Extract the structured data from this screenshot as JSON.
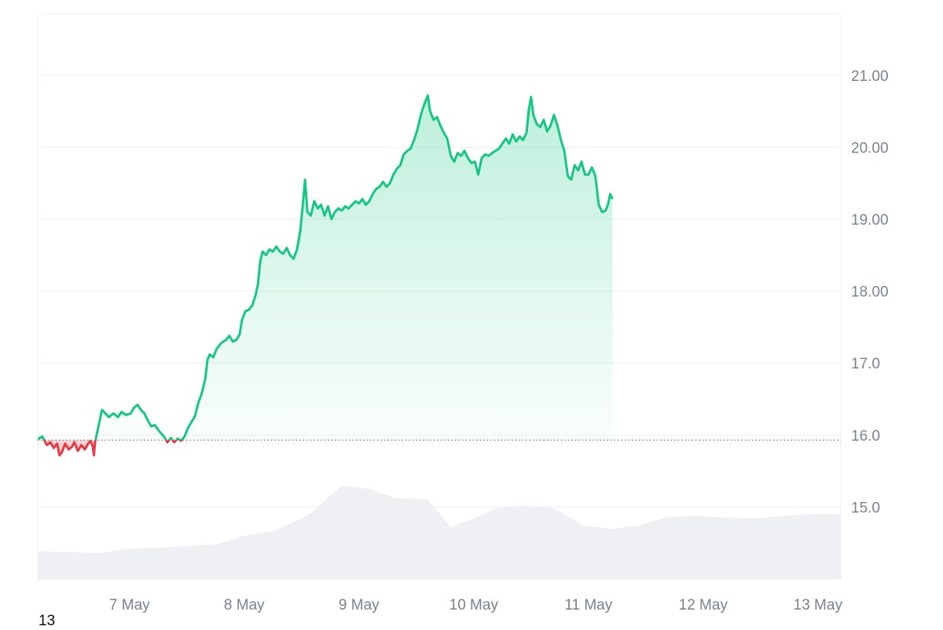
{
  "chart_data": {
    "type": "area",
    "baseline": 15.93,
    "ylim": [
      14.0,
      21.85
    ],
    "y_ticks": [
      {
        "value": 21.0,
        "label": "21.00"
      },
      {
        "value": 20.0,
        "label": "20.00"
      },
      {
        "value": 19.0,
        "label": "19.00"
      },
      {
        "value": 18.0,
        "label": "18.00"
      },
      {
        "value": 17.0,
        "label": "17.0"
      },
      {
        "value": 16.0,
        "label": "16.0"
      },
      {
        "value": 15.0,
        "label": "15.0"
      }
    ],
    "x_domain": [
      6.2,
      13.2
    ],
    "x_ticks": [
      {
        "value": 7,
        "label": "7 May"
      },
      {
        "value": 8,
        "label": "8 May"
      },
      {
        "value": 9,
        "label": "9 May"
      },
      {
        "value": 10,
        "label": "10 May"
      },
      {
        "value": 11,
        "label": "11 May"
      },
      {
        "value": 12,
        "label": "12 May"
      },
      {
        "value": 13,
        "label": "13 May"
      }
    ],
    "price": [
      [
        6.2,
        15.94
      ],
      [
        6.24,
        15.98
      ],
      [
        6.28,
        15.86
      ],
      [
        6.31,
        15.9
      ],
      [
        6.34,
        15.82
      ],
      [
        6.37,
        15.88
      ],
      [
        6.39,
        15.72
      ],
      [
        6.41,
        15.76
      ],
      [
        6.44,
        15.88
      ],
      [
        6.47,
        15.8
      ],
      [
        6.5,
        15.84
      ],
      [
        6.52,
        15.9
      ],
      [
        6.55,
        15.78
      ],
      [
        6.58,
        15.86
      ],
      [
        6.61,
        15.8
      ],
      [
        6.64,
        15.88
      ],
      [
        6.66,
        15.92
      ],
      [
        6.68,
        15.84
      ],
      [
        6.69,
        15.72
      ],
      [
        6.7,
        15.9
      ],
      [
        6.72,
        16.05
      ],
      [
        6.74,
        16.2
      ],
      [
        6.76,
        16.35
      ],
      [
        6.79,
        16.3
      ],
      [
        6.82,
        16.25
      ],
      [
        6.86,
        16.3
      ],
      [
        6.9,
        16.25
      ],
      [
        6.93,
        16.32
      ],
      [
        6.97,
        16.28
      ],
      [
        7.01,
        16.3
      ],
      [
        7.04,
        16.38
      ],
      [
        7.07,
        16.42
      ],
      [
        7.1,
        16.35
      ],
      [
        7.13,
        16.3
      ],
      [
        7.16,
        16.2
      ],
      [
        7.19,
        16.12
      ],
      [
        7.22,
        16.14
      ],
      [
        7.26,
        16.05
      ],
      [
        7.3,
        15.98
      ],
      [
        7.33,
        15.9
      ],
      [
        7.36,
        15.96
      ],
      [
        7.39,
        15.9
      ],
      [
        7.42,
        15.95
      ],
      [
        7.45,
        15.92
      ],
      [
        7.48,
        15.98
      ],
      [
        7.51,
        16.1
      ],
      [
        7.54,
        16.18
      ],
      [
        7.57,
        16.26
      ],
      [
        7.6,
        16.45
      ],
      [
        7.63,
        16.58
      ],
      [
        7.66,
        16.78
      ],
      [
        7.68,
        17.05
      ],
      [
        7.7,
        17.12
      ],
      [
        7.73,
        17.08
      ],
      [
        7.76,
        17.2
      ],
      [
        7.8,
        17.28
      ],
      [
        7.84,
        17.32
      ],
      [
        7.87,
        17.38
      ],
      [
        7.9,
        17.3
      ],
      [
        7.93,
        17.32
      ],
      [
        7.96,
        17.4
      ],
      [
        7.98,
        17.6
      ],
      [
        8.01,
        17.72
      ],
      [
        8.04,
        17.74
      ],
      [
        8.07,
        17.8
      ],
      [
        8.1,
        17.95
      ],
      [
        8.12,
        18.1
      ],
      [
        8.14,
        18.42
      ],
      [
        8.16,
        18.55
      ],
      [
        8.19,
        18.5
      ],
      [
        8.22,
        18.58
      ],
      [
        8.25,
        18.55
      ],
      [
        8.28,
        18.62
      ],
      [
        8.31,
        18.55
      ],
      [
        8.34,
        18.52
      ],
      [
        8.37,
        18.6
      ],
      [
        8.4,
        18.5
      ],
      [
        8.43,
        18.45
      ],
      [
        8.46,
        18.58
      ],
      [
        8.49,
        18.85
      ],
      [
        8.51,
        19.2
      ],
      [
        8.53,
        19.55
      ],
      [
        8.55,
        19.1
      ],
      [
        8.58,
        19.05
      ],
      [
        8.61,
        19.25
      ],
      [
        8.64,
        19.15
      ],
      [
        8.67,
        19.2
      ],
      [
        8.7,
        19.05
      ],
      [
        8.73,
        19.18
      ],
      [
        8.76,
        19.0
      ],
      [
        8.79,
        19.1
      ],
      [
        8.82,
        19.15
      ],
      [
        8.85,
        19.12
      ],
      [
        8.88,
        19.18
      ],
      [
        8.91,
        19.15
      ],
      [
        8.94,
        19.2
      ],
      [
        8.97,
        19.25
      ],
      [
        9.0,
        19.22
      ],
      [
        9.03,
        19.28
      ],
      [
        9.06,
        19.2
      ],
      [
        9.09,
        19.25
      ],
      [
        9.12,
        19.35
      ],
      [
        9.15,
        19.42
      ],
      [
        9.18,
        19.45
      ],
      [
        9.21,
        19.52
      ],
      [
        9.24,
        19.45
      ],
      [
        9.27,
        19.5
      ],
      [
        9.3,
        19.62
      ],
      [
        9.33,
        19.7
      ],
      [
        9.36,
        19.75
      ],
      [
        9.39,
        19.9
      ],
      [
        9.42,
        19.95
      ],
      [
        9.45,
        19.98
      ],
      [
        9.48,
        20.1
      ],
      [
        9.51,
        20.25
      ],
      [
        9.54,
        20.45
      ],
      [
        9.57,
        20.6
      ],
      [
        9.6,
        20.72
      ],
      [
        9.62,
        20.5
      ],
      [
        9.65,
        20.38
      ],
      [
        9.68,
        20.42
      ],
      [
        9.71,
        20.3
      ],
      [
        9.74,
        20.2
      ],
      [
        9.77,
        20.12
      ],
      [
        9.8,
        19.88
      ],
      [
        9.83,
        19.8
      ],
      [
        9.86,
        19.92
      ],
      [
        9.89,
        19.88
      ],
      [
        9.92,
        19.95
      ],
      [
        9.95,
        19.85
      ],
      [
        9.98,
        19.78
      ],
      [
        10.01,
        19.8
      ],
      [
        10.04,
        19.62
      ],
      [
        10.07,
        19.85
      ],
      [
        10.1,
        19.9
      ],
      [
        10.13,
        19.88
      ],
      [
        10.16,
        19.92
      ],
      [
        10.19,
        19.95
      ],
      [
        10.22,
        19.98
      ],
      [
        10.25,
        20.05
      ],
      [
        10.28,
        20.12
      ],
      [
        10.31,
        20.05
      ],
      [
        10.34,
        20.18
      ],
      [
        10.37,
        20.08
      ],
      [
        10.4,
        20.15
      ],
      [
        10.43,
        20.1
      ],
      [
        10.46,
        20.2
      ],
      [
        10.48,
        20.52
      ],
      [
        10.5,
        20.7
      ],
      [
        10.52,
        20.45
      ],
      [
        10.55,
        20.32
      ],
      [
        10.58,
        20.28
      ],
      [
        10.61,
        20.38
      ],
      [
        10.64,
        20.22
      ],
      [
        10.67,
        20.3
      ],
      [
        10.7,
        20.45
      ],
      [
        10.73,
        20.3
      ],
      [
        10.76,
        20.1
      ],
      [
        10.79,
        19.95
      ],
      [
        10.82,
        19.6
      ],
      [
        10.85,
        19.55
      ],
      [
        10.88,
        19.75
      ],
      [
        10.91,
        19.68
      ],
      [
        10.94,
        19.8
      ],
      [
        10.97,
        19.62
      ],
      [
        11.0,
        19.62
      ],
      [
        11.03,
        19.72
      ],
      [
        11.06,
        19.6
      ],
      [
        11.09,
        19.2
      ],
      [
        11.12,
        19.1
      ],
      [
        11.15,
        19.12
      ],
      [
        11.17,
        19.2
      ],
      [
        11.19,
        19.35
      ],
      [
        11.21,
        19.28
      ]
    ],
    "volume": [
      [
        6.2,
        0.32
      ],
      [
        6.5,
        0.31
      ],
      [
        6.75,
        0.3
      ],
      [
        7.0,
        0.35
      ],
      [
        7.25,
        0.36
      ],
      [
        7.5,
        0.38
      ],
      [
        7.75,
        0.4
      ],
      [
        8.0,
        0.5
      ],
      [
        8.25,
        0.55
      ],
      [
        8.5,
        0.7
      ],
      [
        8.6,
        0.78
      ],
      [
        8.85,
        1.08
      ],
      [
        9.1,
        1.04
      ],
      [
        9.3,
        0.94
      ],
      [
        9.6,
        0.92
      ],
      [
        9.8,
        0.6
      ],
      [
        10.0,
        0.7
      ],
      [
        10.2,
        0.82
      ],
      [
        10.4,
        0.85
      ],
      [
        10.7,
        0.82
      ],
      [
        10.95,
        0.62
      ],
      [
        11.2,
        0.58
      ],
      [
        11.45,
        0.62
      ],
      [
        11.7,
        0.72
      ],
      [
        11.95,
        0.73
      ],
      [
        12.2,
        0.71
      ],
      [
        12.45,
        0.7
      ],
      [
        12.7,
        0.73
      ],
      [
        12.9,
        0.75
      ],
      [
        13.2,
        0.75
      ]
    ],
    "corner_label": "13"
  }
}
